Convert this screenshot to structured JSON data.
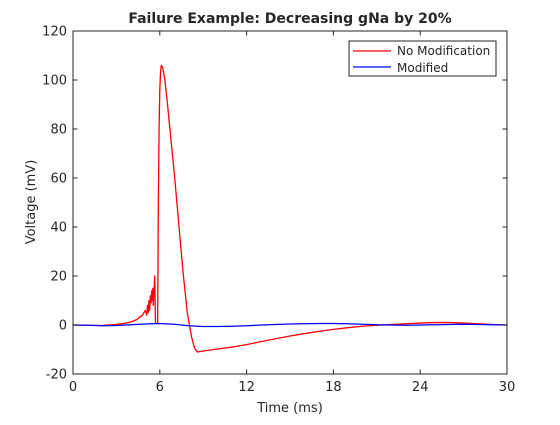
{
  "chart_data": {
    "type": "line",
    "title": "Failure Example: Decreasing gNa by 20%",
    "xlabel": "Time (ms)",
    "ylabel": "Voltage (mV)",
    "xlim": [
      0,
      30
    ],
    "ylim": [
      -20,
      120
    ],
    "x_ticks": [
      0,
      6,
      12,
      18,
      24,
      30
    ],
    "y_ticks": [
      -20,
      0,
      20,
      40,
      60,
      80,
      100,
      120
    ],
    "grid": false,
    "legend_position": "top-right",
    "series": [
      {
        "name": "No Modification",
        "color": "#ff0000",
        "x": [
          0,
          1,
          2,
          3,
          3.5,
          4,
          4.4,
          4.8,
          5.0,
          5.1,
          5.15,
          5.2,
          5.25,
          5.3,
          5.35,
          5.4,
          5.45,
          5.5,
          5.52,
          5.55,
          5.6,
          5.65,
          5.7,
          5.75,
          5.8,
          5.85,
          5.9,
          5.95,
          6.0,
          6.05,
          6.1,
          6.2,
          6.35,
          6.5,
          6.7,
          7.0,
          7.3,
          7.6,
          7.9,
          8.2,
          8.4,
          8.6,
          8.8,
          9.0,
          9.5,
          10,
          11,
          12,
          13,
          14,
          15,
          16,
          17,
          18,
          19,
          20,
          21,
          22,
          23,
          24,
          25,
          26,
          27,
          28,
          29,
          30
        ],
        "y": [
          0,
          -0.1,
          -0.2,
          0.2,
          0.6,
          1.2,
          2.2,
          4.0,
          6.0,
          4.0,
          8.0,
          5.0,
          10.0,
          6.0,
          12.0,
          9.0,
          14.0,
          10.0,
          15.0,
          8.0,
          14.0,
          20.0,
          1.0,
          0.6,
          0.4,
          0.8,
          50.0,
          80.0,
          96.0,
          103.0,
          106.0,
          105.0,
          100.0,
          92.0,
          80.0,
          62.0,
          42.0,
          22.0,
          5.0,
          -5.0,
          -9.5,
          -11.0,
          -10.8,
          -10.6,
          -10.2,
          -9.8,
          -9.0,
          -8.0,
          -6.8,
          -5.6,
          -4.5,
          -3.5,
          -2.6,
          -1.8,
          -1.1,
          -0.5,
          -0.1,
          0.2,
          0.5,
          0.8,
          1.0,
          1.0,
          0.8,
          0.5,
          0.2,
          0.0
        ]
      },
      {
        "name": "Modified",
        "color": "#0000ff",
        "x": [
          0,
          1,
          2,
          3,
          4,
          5,
          6,
          7,
          8,
          9,
          10,
          11,
          12,
          13,
          14,
          15,
          16,
          17,
          18,
          19,
          20,
          21,
          22,
          23,
          24,
          25,
          26,
          27,
          28,
          29,
          30
        ],
        "y": [
          0,
          -0.1,
          -0.3,
          -0.2,
          0.1,
          0.4,
          0.6,
          0.3,
          -0.3,
          -0.6,
          -0.6,
          -0.5,
          -0.3,
          0.0,
          0.2,
          0.4,
          0.5,
          0.6,
          0.6,
          0.5,
          0.3,
          0.1,
          0.0,
          -0.1,
          0.0,
          0.1,
          0.2,
          0.3,
          0.2,
          0.1,
          0.0
        ]
      }
    ]
  }
}
